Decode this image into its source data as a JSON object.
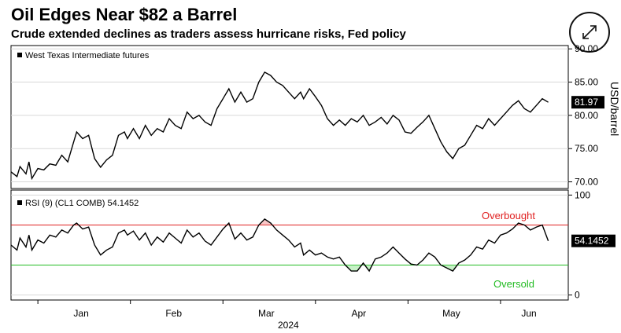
{
  "header": {
    "title": "Oil Edges Near $82 a Barrel",
    "subtitle": "Crude extended declines as traders assess hurricane risks, Fed policy"
  },
  "expand_icon": "expand-arrows-icon",
  "chart_data": [
    {
      "type": "line",
      "legend": "West Texas Intermediate futures",
      "ylabel": "USD/barrel",
      "yticks": [
        "70.00",
        "75.00",
        "80.00",
        "85.00",
        "90.00"
      ],
      "ylim": [
        69,
        90.5
      ],
      "last_value_label": "81.97",
      "color": "#000000",
      "x": [
        0,
        2,
        3,
        5,
        6,
        7,
        9,
        11,
        13,
        15,
        17,
        19,
        21,
        22,
        24,
        26,
        28,
        30,
        32,
        34,
        36,
        38,
        39,
        41,
        43,
        45,
        47,
        49,
        51,
        53,
        55,
        57,
        59,
        61,
        63,
        65,
        67,
        69,
        71,
        73,
        75,
        77,
        79,
        81,
        83,
        85,
        87,
        89,
        91,
        93,
        95,
        97,
        98,
        100,
        102,
        104,
        106,
        108,
        110,
        112,
        114,
        116,
        118,
        120,
        122,
        124,
        126,
        128,
        130,
        132,
        134,
        136,
        138,
        140,
        142,
        144,
        146,
        148,
        150,
        152,
        154,
        156,
        158,
        160,
        162,
        164,
        166,
        168,
        170,
        172,
        174,
        176,
        178,
        180
      ],
      "y": [
        71.5,
        70.8,
        72.3,
        71.2,
        73.0,
        70.5,
        72.0,
        71.8,
        72.7,
        72.5,
        74.0,
        73.0,
        76.0,
        77.5,
        76.5,
        77.0,
        73.5,
        72.2,
        73.3,
        74.0,
        77.0,
        77.5,
        76.5,
        78.0,
        76.5,
        78.5,
        77.0,
        78.0,
        77.5,
        79.5,
        78.5,
        78.0,
        80.5,
        79.5,
        80.0,
        79.0,
        78.5,
        81.0,
        82.5,
        84.0,
        82.0,
        83.5,
        82.0,
        82.5,
        85.0,
        86.5,
        86.0,
        85.0,
        84.5,
        83.5,
        82.5,
        83.5,
        82.5,
        84.0,
        82.8,
        81.5,
        79.5,
        78.5,
        79.3,
        78.5,
        79.5,
        79.0,
        80.0,
        78.5,
        79.0,
        79.7,
        78.7,
        80.0,
        79.3,
        77.5,
        77.3,
        78.2,
        79.0,
        80.0,
        78.0,
        76.0,
        74.5,
        73.5,
        75.0,
        75.5,
        77.0,
        78.5,
        78.0,
        79.5,
        78.5,
        79.5,
        80.5,
        81.5,
        82.2,
        81.0,
        80.5,
        81.5,
        82.5,
        81.97
      ],
      "x_tick_labels": [
        "Jan",
        "Feb",
        "Mar",
        "Apr",
        "May",
        "Jun"
      ],
      "x_tick_positions": [
        9,
        40,
        71,
        102,
        133,
        164
      ],
      "year_label": "2024"
    },
    {
      "type": "line",
      "legend": "RSI (9) (CL1 COMB) 54.1452",
      "yticks": [
        "0",
        "100"
      ],
      "ylim": [
        -5,
        105
      ],
      "last_value_label": "54.1452",
      "overbought": 70,
      "oversold": 30,
      "overbought_label": "Overbought",
      "oversold_label": "Oversold",
      "overbought_color": "#e02020",
      "oversold_color": "#22bb22",
      "color": "#000000",
      "x": [
        0,
        2,
        3,
        5,
        6,
        7,
        9,
        11,
        13,
        15,
        17,
        19,
        21,
        22,
        24,
        26,
        28,
        30,
        32,
        34,
        36,
        38,
        39,
        41,
        43,
        45,
        47,
        49,
        51,
        53,
        55,
        57,
        59,
        61,
        63,
        65,
        67,
        69,
        71,
        73,
        75,
        77,
        79,
        81,
        83,
        85,
        87,
        89,
        91,
        93,
        95,
        97,
        98,
        100,
        102,
        104,
        106,
        108,
        110,
        112,
        114,
        116,
        118,
        120,
        122,
        124,
        126,
        128,
        130,
        132,
        134,
        136,
        138,
        140,
        142,
        144,
        146,
        148,
        150,
        152,
        154,
        156,
        158,
        160,
        162,
        164,
        166,
        168,
        170,
        172,
        174,
        176,
        178,
        180
      ],
      "y": [
        50,
        45,
        57,
        48,
        60,
        45,
        55,
        52,
        60,
        58,
        65,
        62,
        70,
        72,
        66,
        68,
        50,
        40,
        45,
        48,
        62,
        65,
        60,
        64,
        55,
        62,
        50,
        58,
        53,
        62,
        57,
        52,
        65,
        58,
        62,
        54,
        50,
        58,
        66,
        72,
        56,
        62,
        55,
        58,
        70,
        76,
        72,
        65,
        60,
        55,
        48,
        52,
        40,
        45,
        40,
        42,
        38,
        36,
        38,
        30,
        24,
        24,
        32,
        24,
        36,
        38,
        42,
        48,
        42,
        36,
        31,
        30,
        35,
        42,
        38,
        30,
        27,
        24,
        32,
        35,
        40,
        48,
        46,
        55,
        52,
        60,
        62,
        66,
        72,
        70,
        65,
        68,
        70,
        54.1452
      ]
    }
  ]
}
